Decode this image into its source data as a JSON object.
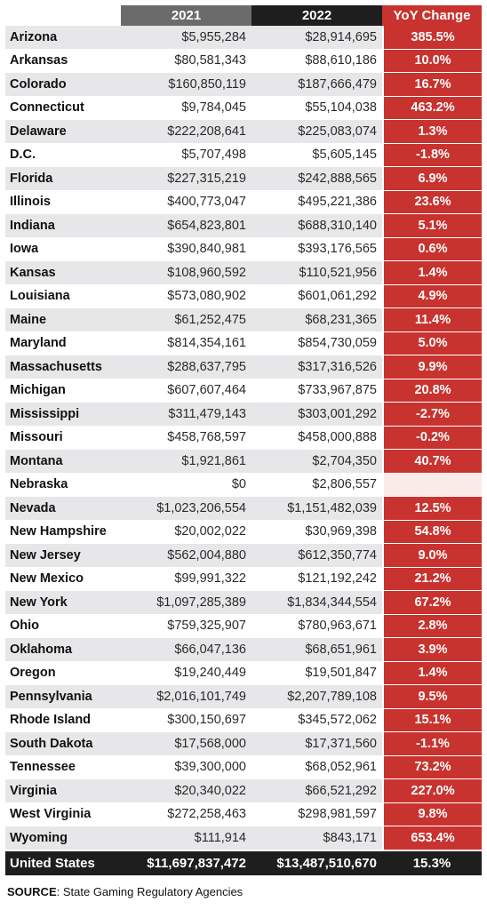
{
  "chart_data": {
    "type": "table",
    "columns": [
      "2021",
      "2022",
      "YoY Change"
    ],
    "rows": [
      {
        "state": "Arizona",
        "y2021": "$5,955,284",
        "y2022": "$28,914,695",
        "yoy": "385.5%"
      },
      {
        "state": "Arkansas",
        "y2021": "$80,581,343",
        "y2022": "$88,610,186",
        "yoy": "10.0%"
      },
      {
        "state": "Colorado",
        "y2021": "$160,850,119",
        "y2022": "$187,666,479",
        "yoy": "16.7%"
      },
      {
        "state": "Connecticut",
        "y2021": "$9,784,045",
        "y2022": "$55,104,038",
        "yoy": "463.2%"
      },
      {
        "state": "Delaware",
        "y2021": "$222,208,641",
        "y2022": "$225,083,074",
        "yoy": "1.3%"
      },
      {
        "state": "D.C.",
        "y2021": "$5,707,498",
        "y2022": "$5,605,145",
        "yoy": "-1.8%"
      },
      {
        "state": "Florida",
        "y2021": "$227,315,219",
        "y2022": "$242,888,565",
        "yoy": "6.9%"
      },
      {
        "state": "Illinois",
        "y2021": "$400,773,047",
        "y2022": "$495,221,386",
        "yoy": "23.6%"
      },
      {
        "state": "Indiana",
        "y2021": "$654,823,801",
        "y2022": "$688,310,140",
        "yoy": "5.1%"
      },
      {
        "state": "Iowa",
        "y2021": "$390,840,981",
        "y2022": "$393,176,565",
        "yoy": "0.6%"
      },
      {
        "state": "Kansas",
        "y2021": "$108,960,592",
        "y2022": "$110,521,956",
        "yoy": "1.4%"
      },
      {
        "state": "Louisiana",
        "y2021": "$573,080,902",
        "y2022": "$601,061,292",
        "yoy": "4.9%"
      },
      {
        "state": "Maine",
        "y2021": "$61,252,475",
        "y2022": "$68,231,365",
        "yoy": "11.4%"
      },
      {
        "state": "Maryland",
        "y2021": "$814,354,161",
        "y2022": "$854,730,059",
        "yoy": "5.0%"
      },
      {
        "state": "Massachusetts",
        "y2021": "$288,637,795",
        "y2022": "$317,316,526",
        "yoy": "9.9%"
      },
      {
        "state": "Michigan",
        "y2021": "$607,607,464",
        "y2022": "$733,967,875",
        "yoy": "20.8%"
      },
      {
        "state": "Mississippi",
        "y2021": "$311,479,143",
        "y2022": "$303,001,292",
        "yoy": "-2.7%"
      },
      {
        "state": "Missouri",
        "y2021": "$458,768,597",
        "y2022": "$458,000,888",
        "yoy": "-0.2%"
      },
      {
        "state": "Montana",
        "y2021": "$1,921,861",
        "y2022": "$2,704,350",
        "yoy": "40.7%"
      },
      {
        "state": "Nebraska",
        "y2021": "$0",
        "y2022": "$2,806,557",
        "yoy": ""
      },
      {
        "state": "Nevada",
        "y2021": "$1,023,206,554",
        "y2022": "$1,151,482,039",
        "yoy": "12.5%"
      },
      {
        "state": "New Hampshire",
        "y2021": "$20,002,022",
        "y2022": "$30,969,398",
        "yoy": "54.8%"
      },
      {
        "state": "New Jersey",
        "y2021": "$562,004,880",
        "y2022": "$612,350,774",
        "yoy": "9.0%"
      },
      {
        "state": "New Mexico",
        "y2021": "$99,991,322",
        "y2022": "$121,192,242",
        "yoy": "21.2%"
      },
      {
        "state": "New York",
        "y2021": "$1,097,285,389",
        "y2022": "$1,834,344,554",
        "yoy": "67.2%"
      },
      {
        "state": "Ohio",
        "y2021": "$759,325,907",
        "y2022": "$780,963,671",
        "yoy": "2.8%"
      },
      {
        "state": "Oklahoma",
        "y2021": "$66,047,136",
        "y2022": "$68,651,961",
        "yoy": "3.9%"
      },
      {
        "state": "Oregon",
        "y2021": "$19,240,449",
        "y2022": "$19,501,847",
        "yoy": "1.4%"
      },
      {
        "state": "Pennsylvania",
        "y2021": "$2,016,101,749",
        "y2022": "$2,207,789,108",
        "yoy": "9.5%"
      },
      {
        "state": "Rhode Island",
        "y2021": "$300,150,697",
        "y2022": "$345,572,062",
        "yoy": "15.1%"
      },
      {
        "state": "South Dakota",
        "y2021": "$17,568,000",
        "y2022": "$17,371,560",
        "yoy": "-1.1%"
      },
      {
        "state": "Tennessee",
        "y2021": "$39,300,000",
        "y2022": "$68,052,961",
        "yoy": "73.2%"
      },
      {
        "state": "Virginia",
        "y2021": "$20,340,022",
        "y2022": "$66,521,292",
        "yoy": "227.0%"
      },
      {
        "state": "West Virginia",
        "y2021": "$272,258,463",
        "y2022": "$298,981,597",
        "yoy": "9.8%"
      },
      {
        "state": "Wyoming",
        "y2021": "$111,914",
        "y2022": "$843,171",
        "yoy": "653.4%"
      }
    ],
    "total": {
      "state": "United States",
      "y2021": "$11,697,837,472",
      "y2022": "$13,487,510,670",
      "yoy": "15.3%"
    }
  },
  "source": {
    "label": "SOURCE",
    "text": ": State Gaming Regulatory Agencies"
  },
  "colors": {
    "header_2021": "#6b6b6b",
    "header_2022": "#1e1e1e",
    "yoy_accent": "#c8332f",
    "stripe": "#e7e7e9",
    "empty_yoy": "#f9ece6"
  }
}
